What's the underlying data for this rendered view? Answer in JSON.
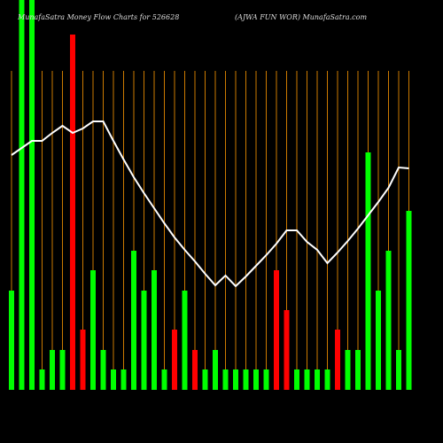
{
  "chart_data": {
    "type": "bar",
    "title": "MunafaSatra  Money Flow  Charts for 526628",
    "subtitle": "(AJWA FUN  WOR) MunafaSatra.com",
    "values": [
      112,
      440,
      440,
      23,
      45,
      45,
      401,
      68,
      135,
      45,
      23,
      23,
      157,
      112,
      135,
      23,
      68,
      112,
      45,
      23,
      45,
      23,
      23,
      23,
      23,
      23,
      135,
      90,
      23,
      23,
      23,
      23,
      68,
      45,
      45,
      268,
      112,
      157,
      45,
      202
    ],
    "colors": [
      "#00ff00",
      "#00ff00",
      "#00ff00",
      "#00ff00",
      "#00ff00",
      "#00ff00",
      "#ff0000",
      "#ff0000",
      "#00ff00",
      "#00ff00",
      "#00ff00",
      "#00ff00",
      "#00ff00",
      "#00ff00",
      "#00ff00",
      "#00ff00",
      "#ff0000",
      "#00ff00",
      "#ff0000",
      "#00ff00",
      "#00ff00",
      "#00ff00",
      "#00ff00",
      "#00ff00",
      "#00ff00",
      "#00ff00",
      "#ff0000",
      "#ff0000",
      "#00ff00",
      "#00ff00",
      "#00ff00",
      "#00ff00",
      "#ff0000",
      "#00ff00",
      "#00ff00",
      "#00ff00",
      "#00ff00",
      "#00ff00",
      "#00ff00",
      "#00ff00"
    ],
    "line_values": [
      265,
      273,
      281,
      281,
      290,
      298,
      290,
      295,
      303,
      303,
      281,
      260,
      240,
      222,
      205,
      188,
      172,
      158,
      145,
      131,
      118,
      129,
      117,
      128,
      140,
      152,
      165,
      180,
      180,
      167,
      158,
      143,
      155,
      168,
      182,
      197,
      212,
      228,
      251,
      250
    ],
    "line_color": "#ffffff",
    "grid_color": "#cc7a00",
    "ylim": [
      0,
      440
    ]
  }
}
